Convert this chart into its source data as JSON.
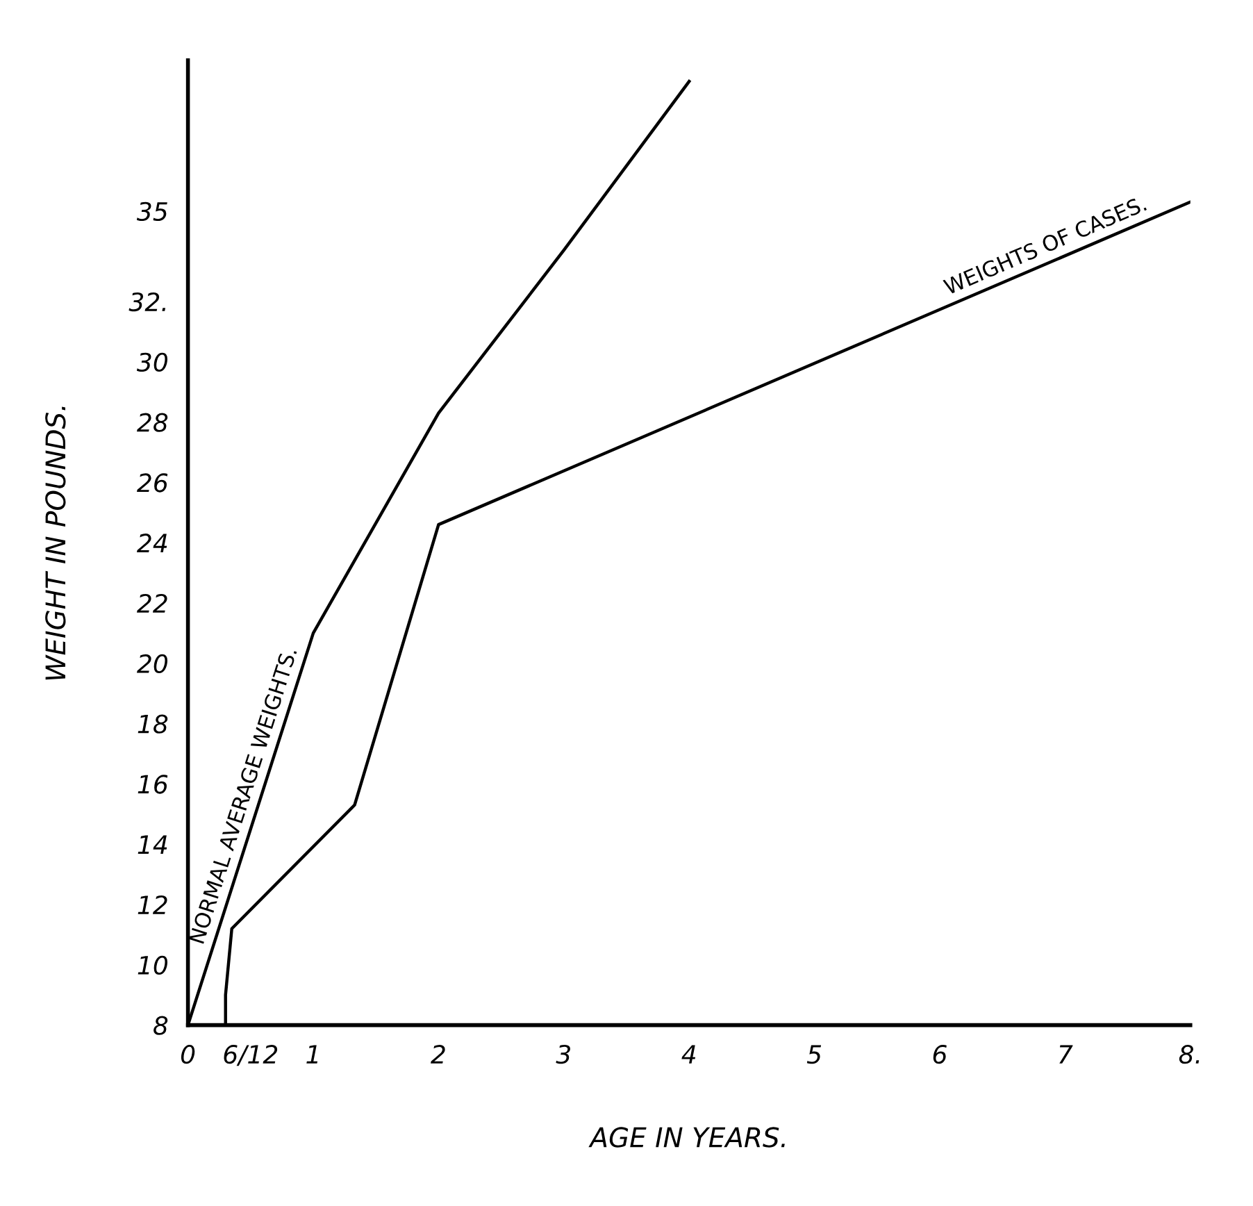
{
  "chart_data": {
    "type": "line",
    "xlabel": "AGE IN YEARS.",
    "ylabel": "WEIGHT IN POUNDS.",
    "series": [
      {
        "name": "NORMAL AVERAGE WEIGHTS.",
        "color": "#000000",
        "x": [
          0,
          1,
          2,
          3,
          4
        ],
        "values": [
          8,
          21,
          28.3,
          33.7,
          39.3
        ]
      },
      {
        "name": "WEIGHTS OF CASES.",
        "color": "#000000",
        "x": [
          0.3,
          0.3,
          0.35,
          1.33,
          2,
          8
        ],
        "values": [
          8,
          9,
          11.2,
          15.3,
          24.6,
          35.3
        ]
      }
    ],
    "xlim": [
      0,
      8
    ],
    "ylim": [
      8,
      40
    ],
    "xticks": [
      0,
      {
        "value": 0.5,
        "label": "6/12"
      },
      1,
      2,
      3,
      4,
      5,
      6,
      7,
      {
        "value": 8,
        "label": "8."
      }
    ],
    "yticks": [
      8,
      10,
      12,
      14,
      16,
      18,
      20,
      22,
      24,
      26,
      28,
      30,
      {
        "value": 32,
        "label": "32."
      },
      35
    ],
    "grid": false,
    "legend": false,
    "marker": "none",
    "line_style": "solid"
  }
}
